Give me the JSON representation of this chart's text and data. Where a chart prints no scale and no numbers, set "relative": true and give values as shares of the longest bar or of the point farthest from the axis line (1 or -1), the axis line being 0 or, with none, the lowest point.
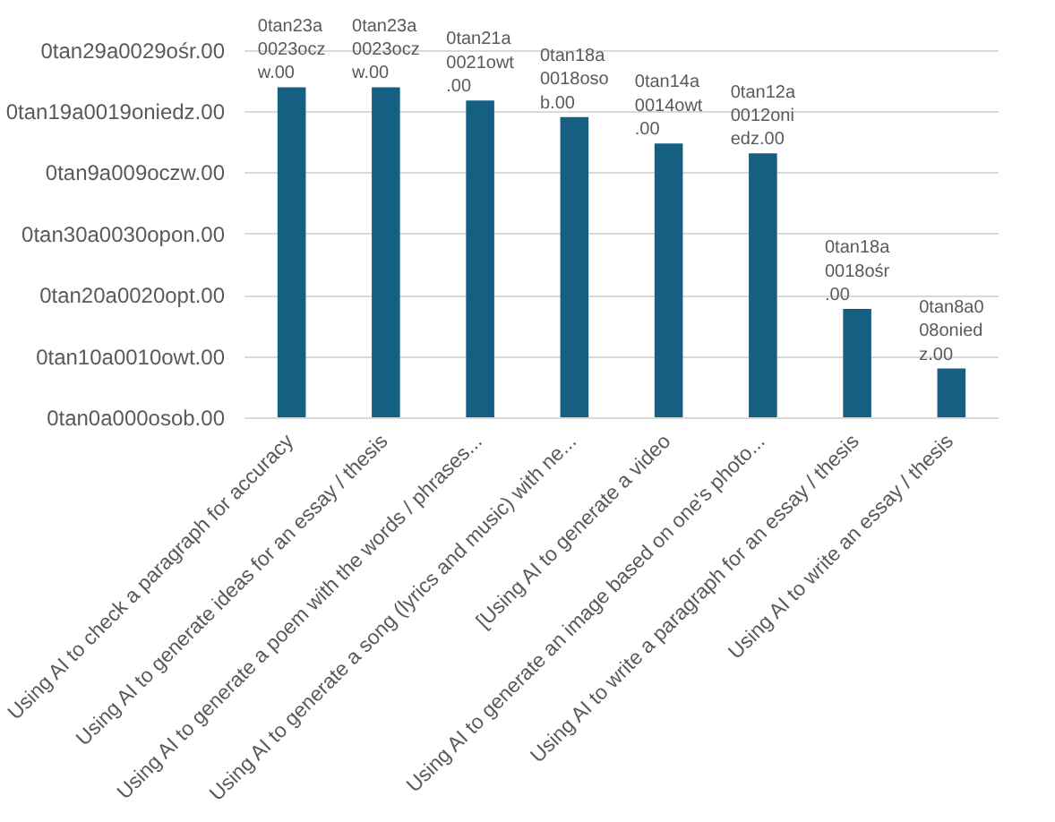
{
  "chart_data": {
    "type": "bar",
    "relative": true,
    "categories": [
      "Using AI to check a paragraph for accuracy",
      "Using AI to generate ideas for an essay / thesis",
      "Using AI to generate a poem with the words / phrases...",
      "Using AI to generate a song (lyrics and music) with ne...",
      "[Using AI to generate a video",
      "Using AI to generate an image based on one's photo...",
      "Using AI to write a paragraph for an essay / thesis",
      "Using AI to write an essay / thesis"
    ],
    "values": [
      1,
      1,
      0.96,
      0.91,
      0.83,
      0.8,
      0.33,
      0.15
    ],
    "color": "#156082",
    "grid": "y",
    "annotations": [
      "0tan29a0029ośr.00",
      "0tan19a0019oniedz.00",
      "0tan9a009oczw.00",
      "0tan30a0030opon.00",
      "0tan20a0020opt.00",
      "0tan10a0010owt.00",
      "0tan0a000osob.00",
      {
        "text": "0tan23a0023oczw.00",
        "x": "Using AI to check a paragraph for accuracy",
        "y": 1
      },
      {
        "text": "0tan23a0023oczw.00",
        "x": "Using AI to generate ideas for an essay / thesis",
        "y": 1
      },
      {
        "text": "0tan21a0021owt.00",
        "x": "Using AI to generate a poem with the words / phrases...",
        "y": 0.96
      },
      {
        "text": "0tan18a0018osob.00",
        "x": "Using AI to generate a song (lyrics and music) with ne...",
        "y": 0.91
      },
      {
        "text": "0tan14a0014owt.00",
        "x": "[Using AI to generate a video",
        "y": 0.83
      },
      {
        "text": "0tan12a0012oniedz.00",
        "x": "Using AI to generate an image based on one's photo...",
        "y": 0.8
      },
      {
        "text": "0tan18a0018ośr.00",
        "x": "Using AI to write a paragraph for an essay / thesis",
        "y": 0.33
      },
      {
        "text": "0tan8a008oniedz.00",
        "x": "Using AI to write an essay / thesis",
        "y": 0.15
      }
    ]
  }
}
